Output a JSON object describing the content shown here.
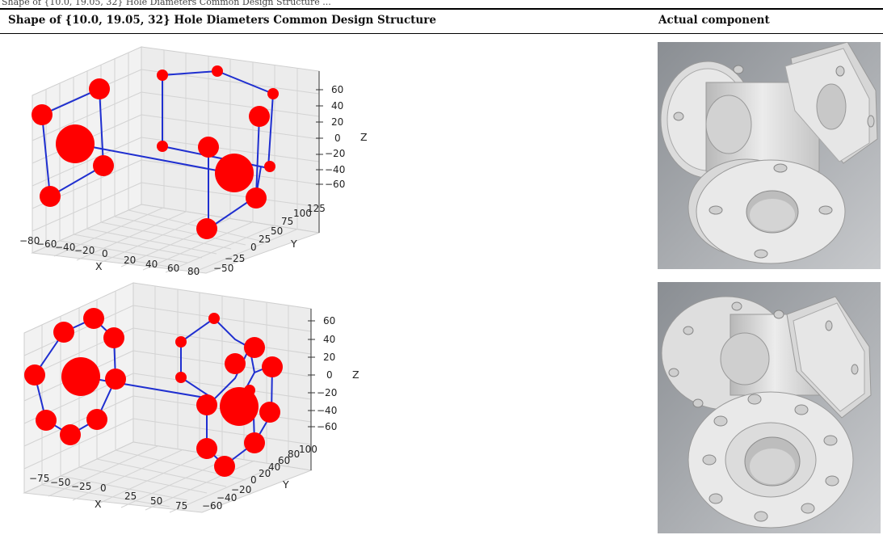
{
  "caption": "Shape of {10.0, 19.05, 32} Hole Diameters Common Design Structure ...",
  "table": {
    "header_left": "Shape of {10.0, 19.05, 32} Hole Diameters Common Design Structure",
    "header_right": "Actual component"
  },
  "colors": {
    "node": "#ff0000",
    "edge": "#1f2fd0",
    "grid": "#d8d8d8",
    "pane": "#f2f2f2"
  },
  "plots": [
    {
      "x_ticks": [
        "−80",
        "−60",
        "−40",
        "−20",
        "0",
        "20",
        "40",
        "60",
        "80"
      ],
      "y_ticks": [
        "−50",
        "−25",
        "0",
        "25",
        "50",
        "75",
        "100",
        "125"
      ],
      "z_ticks": [
        "60",
        "40",
        "20",
        "0",
        "−20",
        "−40",
        "−60"
      ],
      "xlabel": "X",
      "ylabel": "Y",
      "zlabel": "Z"
    },
    {
      "x_ticks": [
        "−75",
        "−50",
        "−25",
        "0",
        "25",
        "50",
        "75"
      ],
      "y_ticks": [
        "−60",
        "−40",
        "−20",
        "0",
        "20",
        "40",
        "60",
        "80",
        "100"
      ],
      "z_ticks": [
        "60",
        "40",
        "20",
        "0",
        "−20",
        "−40",
        "−60"
      ],
      "xlabel": "X",
      "ylabel": "Y",
      "zlabel": "Z"
    }
  ],
  "photos": [
    {
      "icon": "flanged-tee-4-hole-render"
    },
    {
      "icon": "flanged-tee-8-hole-render"
    }
  ]
}
